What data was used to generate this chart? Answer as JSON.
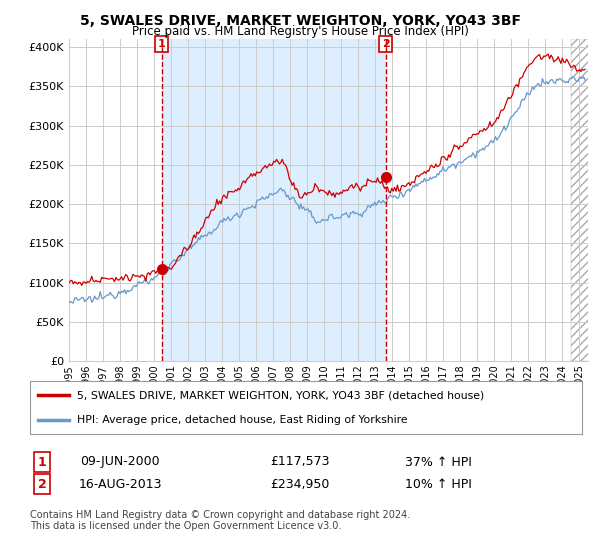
{
  "title": "5, SWALES DRIVE, MARKET WEIGHTON, YORK, YO43 3BF",
  "subtitle": "Price paid vs. HM Land Registry's House Price Index (HPI)",
  "legend_line1": "5, SWALES DRIVE, MARKET WEIGHTON, YORK, YO43 3BF (detached house)",
  "legend_line2": "HPI: Average price, detached house, East Riding of Yorkshire",
  "footnote": "Contains HM Land Registry data © Crown copyright and database right 2024.\nThis data is licensed under the Open Government Licence v3.0.",
  "transaction1_date": "09-JUN-2000",
  "transaction1_price": "£117,573",
  "transaction1_hpi": "37% ↑ HPI",
  "transaction2_date": "16-AUG-2013",
  "transaction2_price": "£234,950",
  "transaction2_hpi": "10% ↑ HPI",
  "red_color": "#cc0000",
  "blue_color": "#6699cc",
  "shade_color": "#ddeeff",
  "background_color": "#ffffff",
  "grid_color": "#cccccc",
  "ylim": [
    0,
    410000
  ],
  "yticks": [
    0,
    50000,
    100000,
    150000,
    200000,
    250000,
    300000,
    350000,
    400000
  ],
  "marker1_x": 2000.44,
  "marker1_y": 117573,
  "marker2_x": 2013.62,
  "marker2_y": 234950,
  "vline1_x": 2000.44,
  "vline2_x": 2013.62,
  "xmin": 1995.0,
  "xmax": 2025.5,
  "hatch_start": 2024.5
}
